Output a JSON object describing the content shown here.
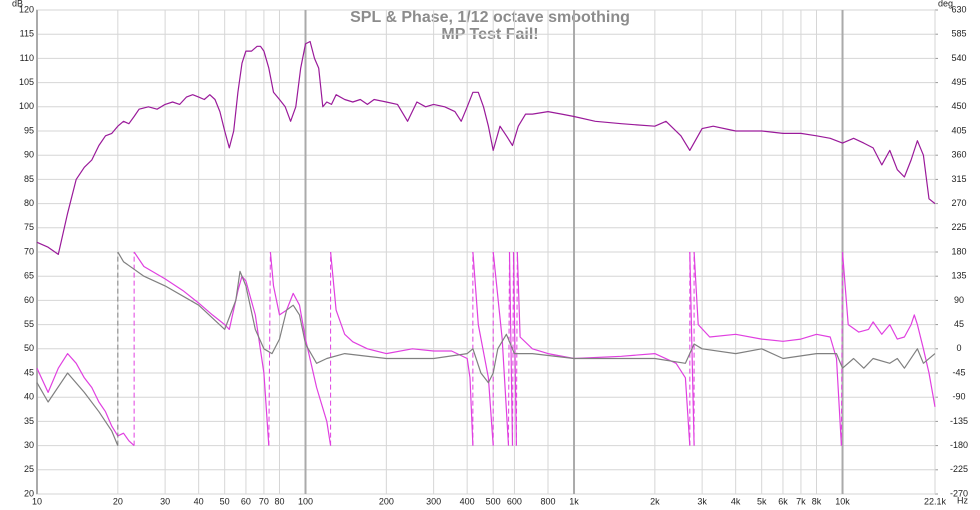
{
  "chart_data": {
    "type": "line",
    "title": "SPL & Phase, 1/12 octave smoothing",
    "subtitle": "MP Test Fail!",
    "y_label": "dB",
    "y2_label": "deg",
    "x_unit": "Hz",
    "xscale": "log",
    "grid": true,
    "xlim": [
      10,
      22100
    ],
    "xticks": [
      10,
      20,
      30,
      40,
      50,
      60,
      70,
      80,
      100,
      200,
      300,
      400,
      500,
      600,
      800,
      {
        "value": 1000,
        "label": "1k"
      },
      {
        "value": 2000,
        "label": "2k"
      },
      {
        "value": 3000,
        "label": "3k"
      },
      {
        "value": 4000,
        "label": "4k"
      },
      {
        "value": 5000,
        "label": "5k"
      },
      {
        "value": 6000,
        "label": "6k"
      },
      {
        "value": 7000,
        "label": "7k"
      },
      {
        "value": 8000,
        "label": "8k"
      },
      {
        "value": 10000,
        "label": "10k"
      },
      {
        "value": 22100,
        "label": "22.1k"
      }
    ],
    "ylim": [
      20,
      120
    ],
    "yticks": [
      20,
      25,
      30,
      35,
      40,
      45,
      50,
      55,
      60,
      65,
      70,
      75,
      80,
      85,
      90,
      95,
      100,
      105,
      110,
      115,
      120
    ],
    "y2lim": [
      -270,
      630
    ],
    "y2ticks": [
      -270,
      -225,
      -180,
      -135,
      -90,
      -45,
      0,
      45,
      90,
      135,
      180,
      225,
      270,
      315,
      360,
      405,
      450,
      495,
      540,
      585,
      630
    ],
    "series": [
      {
        "color": "#9a1a9a",
        "x": [
          10,
          11,
          12,
          13,
          14,
          15,
          16,
          17,
          18,
          19,
          20,
          21,
          22,
          23,
          24,
          26,
          28,
          30,
          32,
          34,
          36,
          38,
          40,
          42,
          44,
          46,
          48,
          50,
          52,
          54,
          56,
          58,
          60,
          63,
          66,
          68,
          70,
          73,
          76,
          80,
          84,
          88,
          92,
          96,
          100,
          104,
          108,
          112,
          116,
          120,
          125,
          130,
          140,
          150,
          160,
          170,
          180,
          200,
          220,
          240,
          260,
          280,
          300,
          330,
          360,
          380,
          400,
          420,
          440,
          460,
          480,
          500,
          530,
          560,
          590,
          620,
          660,
          700,
          800,
          900,
          1000,
          1200,
          1500,
          2000,
          2200,
          2500,
          2700,
          3000,
          3300,
          4000,
          5000,
          6000,
          7000,
          8000,
          9000,
          10000,
          11000,
          12000,
          13000,
          14000,
          15000,
          16000,
          17000,
          18000,
          19000,
          20000,
          21000,
          22100
        ],
        "values": [
          72,
          71,
          69.5,
          78,
          85,
          87.5,
          89,
          92,
          94,
          94.5,
          96,
          97,
          96.5,
          98,
          99.5,
          100,
          99.5,
          100.5,
          101,
          100.5,
          102,
          102.5,
          102,
          101.5,
          102.5,
          101.5,
          99,
          95,
          91.5,
          95,
          103,
          109,
          111.5,
          111.5,
          112.5,
          112.5,
          111.5,
          108,
          103,
          101.5,
          100,
          97,
          100,
          108,
          113,
          113.5,
          110,
          108,
          100,
          101,
          100.5,
          102.5,
          101.5,
          101,
          101.5,
          100.5,
          101.5,
          101,
          100.5,
          97,
          101,
          100,
          100.5,
          100,
          99,
          97,
          100,
          103,
          103,
          100,
          96,
          91,
          96,
          94,
          92,
          96,
          98.5,
          98.5,
          99,
          98.5,
          98,
          97,
          96.5,
          96,
          97,
          94,
          91,
          95.5,
          96,
          95,
          95,
          94.5,
          94.5,
          94,
          93.5,
          92.5,
          93.5,
          92.5,
          91.5,
          88,
          91,
          87,
          85.5,
          89,
          93,
          90,
          81,
          80
        ]
      },
      {
        "color": "#e040e0",
        "axis": "y2",
        "x": [
          10,
          11,
          12,
          13,
          14,
          15,
          16,
          17,
          18,
          19,
          20,
          21,
          22,
          23,
          23,
          23,
          25,
          30,
          35,
          40,
          45,
          50,
          52,
          56,
          58,
          60,
          65,
          70,
          73,
          73,
          74,
          76,
          80,
          85,
          90,
          95,
          100,
          110,
          120,
          124,
          124,
          124,
          130,
          140,
          150,
          170,
          200,
          250,
          300,
          350,
          400,
          410,
          420,
          420,
          420,
          440,
          480,
          500,
          500,
          500,
          540,
          570,
          570,
          575,
          590,
          590,
          595,
          610,
          610,
          615,
          630,
          700,
          800,
          1000,
          1500,
          2000,
          2400,
          2600,
          2700,
          2700,
          2700,
          2800,
          2800,
          2800,
          2900,
          3200,
          4000,
          5000,
          6000,
          7000,
          8000,
          9000,
          9500,
          9900,
          9900,
          10000,
          10500,
          11500,
          12500,
          13000,
          14000,
          15000,
          16000,
          17000,
          18000,
          18500,
          19000,
          20000,
          21000,
          22100
        ],
        "values": [
          -36,
          -81,
          -36,
          -9,
          -27,
          -54,
          -72,
          -99,
          -117,
          -144,
          -162,
          -157,
          -171,
          -180,
          null,
          180,
          153,
          130,
          108,
          85,
          63,
          45,
          36,
          108,
          135,
          126,
          63,
          -45,
          -180,
          null,
          180,
          117,
          63,
          72,
          103,
          81,
          18,
          -72,
          -135,
          -180,
          null,
          180,
          72,
          27,
          13,
          0,
          -9,
          0,
          -4,
          -4,
          -18,
          -54,
          -180,
          null,
          180,
          45,
          -54,
          -180,
          null,
          180,
          18,
          -180,
          null,
          180,
          -180,
          null,
          180,
          -180,
          null,
          180,
          22,
          0,
          -9,
          -18,
          -14,
          -9,
          -27,
          -54,
          -180,
          null,
          180,
          -180,
          null,
          180,
          45,
          22,
          27,
          18,
          14,
          18,
          27,
          22,
          -18,
          -180,
          null,
          180,
          45,
          31,
          36,
          50,
          27,
          45,
          18,
          22,
          45,
          63,
          45,
          0,
          -45,
          -108
        ]
      },
      {
        "color": "#808080",
        "axis": "y2",
        "x": [
          10,
          11,
          13,
          15,
          17,
          19,
          20,
          20,
          20,
          21,
          25,
          30,
          40,
          50,
          55,
          57,
          60,
          65,
          70,
          75,
          80,
          85,
          90,
          95,
          100,
          110,
          120,
          140,
          200,
          300,
          400,
          420,
          450,
          480,
          500,
          520,
          560,
          600,
          700,
          1000,
          2000,
          2600,
          2800,
          3000,
          4000,
          5000,
          6000,
          8000,
          9500,
          10000,
          11000,
          12000,
          13000,
          15000,
          16000,
          17000,
          19000,
          20000,
          22100
        ],
        "values": [
          -63,
          -99,
          -45,
          -81,
          -117,
          -153,
          -180,
          null,
          180,
          162,
          135,
          117,
          81,
          36,
          90,
          144,
          117,
          36,
          0,
          -9,
          18,
          72,
          81,
          63,
          9,
          -27,
          -18,
          -9,
          -18,
          -18,
          -9,
          0,
          -45,
          -63,
          -45,
          0,
          27,
          -9,
          -9,
          -18,
          -18,
          -27,
          9,
          0,
          -9,
          0,
          -18,
          -9,
          -9,
          -36,
          -18,
          -36,
          -18,
          -27,
          -18,
          -36,
          0,
          -27,
          -9
        ]
      }
    ]
  }
}
